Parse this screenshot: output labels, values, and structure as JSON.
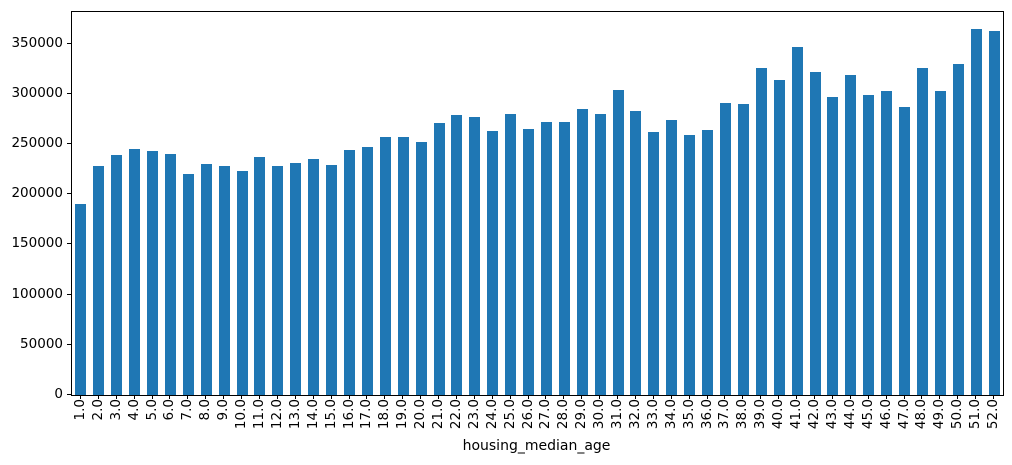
{
  "chart_data": {
    "type": "bar",
    "title": "",
    "xlabel": "housing_median_age",
    "ylabel": "",
    "categories": [
      "1.0",
      "2.0",
      "3.0",
      "4.0",
      "5.0",
      "6.0",
      "7.0",
      "8.0",
      "9.0",
      "10.0",
      "11.0",
      "12.0",
      "13.0",
      "14.0",
      "15.0",
      "16.0",
      "17.0",
      "18.0",
      "19.0",
      "20.0",
      "21.0",
      "22.0",
      "23.0",
      "24.0",
      "25.0",
      "26.0",
      "27.0",
      "28.0",
      "29.0",
      "30.0",
      "31.0",
      "32.0",
      "33.0",
      "34.0",
      "35.0",
      "36.0",
      "37.0",
      "38.0",
      "39.0",
      "40.0",
      "41.0",
      "42.0",
      "43.0",
      "44.0",
      "45.0",
      "46.0",
      "47.0",
      "48.0",
      "49.0",
      "50.0",
      "51.0",
      "52.0"
    ],
    "values": [
      190500,
      228000,
      239500,
      245500,
      243000,
      240000,
      220000,
      230500,
      228000,
      223000,
      237500,
      228500,
      231000,
      235500,
      229000,
      244000,
      247000,
      257000,
      257000,
      252500,
      270500,
      278500,
      276500,
      262500,
      279500,
      265000,
      271500,
      271500,
      285000,
      279500,
      303500,
      282500,
      262000,
      274000,
      259000,
      263500,
      291000,
      290000,
      325500,
      313500,
      346500,
      321500,
      296500,
      318500,
      298500,
      303000,
      286500,
      325500,
      303000,
      330000,
      364500,
      362500
    ],
    "yticks": [
      0,
      50000,
      100000,
      150000,
      200000,
      250000,
      300000,
      350000
    ],
    "ylim": [
      0,
      381500
    ],
    "bar_color": "#1f77b4",
    "axis_color": "#000000",
    "grid": false,
    "legend": "none",
    "x_tick_rotation": 90
  }
}
